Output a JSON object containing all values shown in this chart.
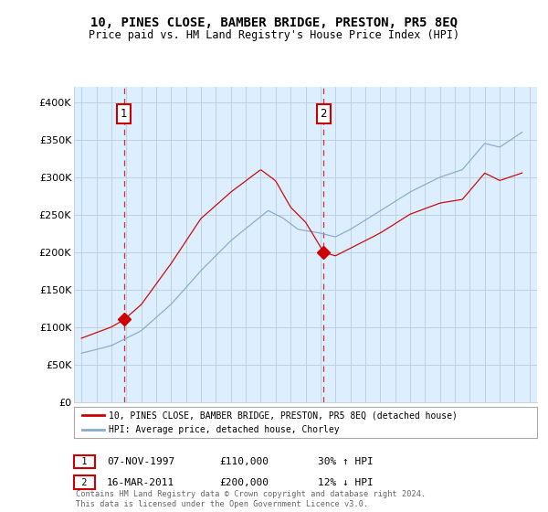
{
  "title": "10, PINES CLOSE, BAMBER BRIDGE, PRESTON, PR5 8EQ",
  "subtitle": "Price paid vs. HM Land Registry's House Price Index (HPI)",
  "property_label": "10, PINES CLOSE, BAMBER BRIDGE, PRESTON, PR5 8EQ (detached house)",
  "hpi_label": "HPI: Average price, detached house, Chorley",
  "annotation1": {
    "number": "1",
    "date": "07-NOV-1997",
    "price": "£110,000",
    "pct": "30% ↑ HPI"
  },
  "annotation2": {
    "number": "2",
    "date": "16-MAR-2011",
    "price": "£200,000",
    "pct": "12% ↓ HPI"
  },
  "footer": "Contains HM Land Registry data © Crown copyright and database right 2024.\nThis data is licensed under the Open Government Licence v3.0.",
  "property_color": "#cc0000",
  "hpi_color": "#88aacc",
  "plot_bg_color": "#ddeeff",
  "background_color": "#ffffff",
  "grid_color": "#bbccdd",
  "sale1_x": 1997.85,
  "sale1_y": 110000,
  "sale2_x": 2011.21,
  "sale2_y": 200000,
  "ylim": [
    0,
    420000
  ],
  "yticks": [
    0,
    50000,
    100000,
    150000,
    200000,
    250000,
    300000,
    350000,
    400000
  ],
  "ytick_labels": [
    "£0",
    "£50K",
    "£100K",
    "£150K",
    "£200K",
    "£250K",
    "£300K",
    "£350K",
    "£400K"
  ],
  "xlim": [
    1994.5,
    2025.5
  ],
  "xticks": [
    1995,
    1996,
    1997,
    1998,
    1999,
    2000,
    2001,
    2002,
    2003,
    2004,
    2005,
    2006,
    2007,
    2008,
    2009,
    2010,
    2011,
    2012,
    2013,
    2014,
    2015,
    2016,
    2017,
    2018,
    2019,
    2020,
    2021,
    2022,
    2023,
    2024,
    2025
  ]
}
